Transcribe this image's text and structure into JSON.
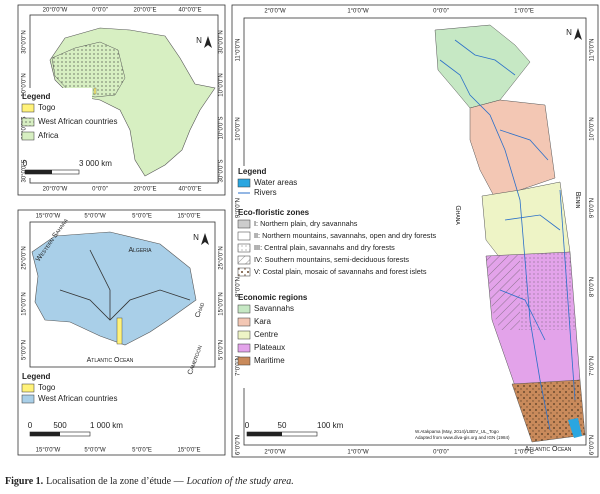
{
  "africa_map": {
    "ticks": {
      "top": [
        "20°0'0\"W",
        "0°0'0\"",
        "20°0'0\"E",
        "40°0'0\"E"
      ],
      "bottom": [
        "20°0'0\"W",
        "0°0'0\"",
        "20°0'0\"E",
        "40°0'0\"E"
      ],
      "left": [
        "30°0'0\"N",
        "10°0'0\"N",
        "10°0'0\"S",
        "30°0'0\"S"
      ],
      "right": [
        "30°0'0\"N",
        "10°0'0\"N",
        "10°0'0\"S",
        "30°0'0\"S"
      ]
    },
    "north": "N",
    "legend": {
      "title": "Legend",
      "items": [
        "Togo",
        "West African countries",
        "Africa"
      ]
    },
    "scale": [
      "0",
      "3 000 km"
    ]
  },
  "west_africa_map": {
    "ticks": {
      "top": [
        "15°0'0\"W",
        "5°0'0\"W",
        "5°0'0\"E",
        "15°0'0\"E"
      ],
      "bottom": [
        "15°0'0\"W",
        "5°0'0\"W",
        "5°0'0\"E",
        "15°0'0\"E"
      ],
      "left": [
        "25°0'0\"N",
        "15°0'0\"N",
        "5°0'0\"N"
      ],
      "right": [
        "25°0'0\"N",
        "15°0'0\"N",
        "5°0'0\"N"
      ]
    },
    "north": "N",
    "places": [
      "Western Sahara",
      "Algeria",
      "Chad",
      "Cameroon",
      "Atlantic Ocean"
    ],
    "legend": {
      "title": "Legend",
      "items": [
        "Togo",
        "West African countries"
      ]
    },
    "scale": [
      "0",
      "500",
      "1 000 km"
    ]
  },
  "togo_map": {
    "ticks": {
      "top": [
        "2°0'0\"W",
        "1°0'0\"W",
        "0°0'0\"",
        "1°0'0\"E"
      ],
      "bottom": [
        "2°0'0\"W",
        "1°0'0\"W",
        "0°0'0\"",
        "1°0'0\"E"
      ],
      "left": [
        "11°0'0\"N",
        "10°0'0\"N",
        "9°0'0\"N",
        "8°0'0\"N",
        "7°0'0\"N",
        "6°0'0\"N"
      ],
      "right": [
        "11°0'0\"N",
        "10°0'0\"N",
        "9°0'0\"N",
        "8°0'0\"N",
        "7°0'0\"N",
        "6°0'0\"N"
      ]
    },
    "north": "N",
    "places": [
      "Ghana",
      "Benin",
      "Atlantic Ocean"
    ],
    "legend": {
      "title": "Legend",
      "items": [
        "Water areas",
        "Rivers"
      ]
    },
    "eco_zones": {
      "title": "Eco-floristic zones",
      "items": [
        "I: Northern plain, dry savannahs",
        "II: Northern mountains, savannahs, open and dry forests",
        "III: Central plain, savannahs and dry forests",
        "IV: Southern mountains, semi-deciduous forests",
        "V: Costal plain, mosaic of savannahs and forest islets"
      ]
    },
    "economic_regions": {
      "title": "Economic regions",
      "items": [
        "Savannahs",
        "Kara",
        "Centre",
        "Plateaux",
        "Maritime"
      ]
    },
    "scale": [
      "0",
      "50",
      "100 km"
    ],
    "credit": [
      "W.Atakpama (May, 2014)/LBEV_UL_Togo",
      "Adapted from www.diva-gis.org and IGN (1984)"
    ]
  },
  "caption": {
    "label": "Figure 1.",
    "text": "Localisation de la zone d’étude —",
    "translation": "Location of the study area."
  }
}
